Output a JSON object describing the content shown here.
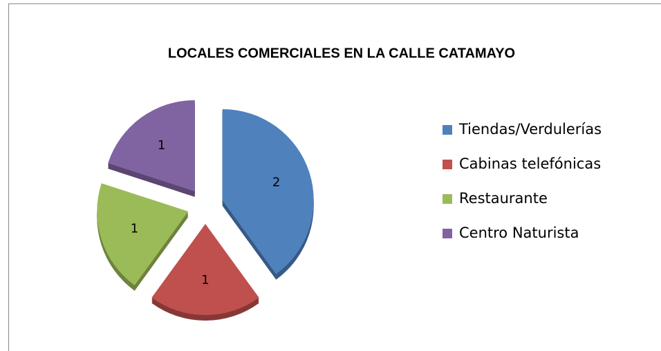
{
  "chart_data": {
    "type": "pie",
    "title": "LOCALES COMERCIALES EN LA CALLE CATAMAYO",
    "categories": [
      "Tiendas/Verdulerías",
      "Cabinas telefónicas",
      "Restaurante",
      "Centro Naturista"
    ],
    "values": [
      2,
      1,
      1,
      1
    ],
    "colors": [
      "#4f81bd",
      "#c0504d",
      "#9bbb59",
      "#8064a2"
    ],
    "legend": "right"
  }
}
